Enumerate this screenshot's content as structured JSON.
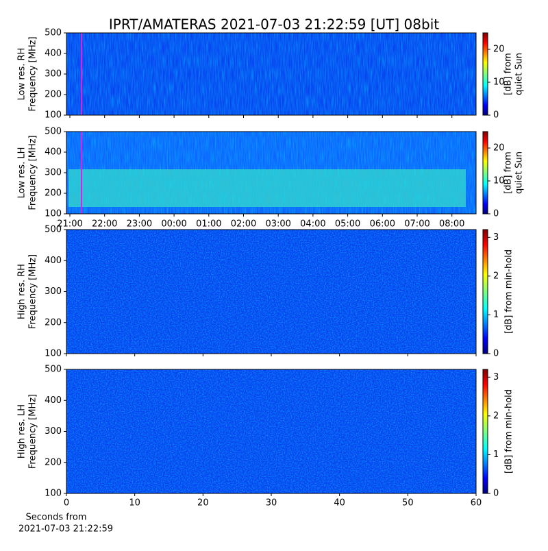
{
  "title": "IPRT/AMATERAS 2021-07-03 21:22:59 [UT]   08bit",
  "chart_data": [
    {
      "type": "spectrogram",
      "ylabel": [
        "Low res. RH",
        "Frequency [MHz]"
      ],
      "ylim": [
        100,
        500
      ],
      "yticks": [
        100,
        200,
        300,
        400,
        500
      ],
      "colorbar_label": [
        "[dB] from",
        "quiet Sun"
      ],
      "clim": [
        0,
        25
      ],
      "cticks": [
        0,
        10,
        20
      ]
    },
    {
      "type": "spectrogram",
      "ylabel": [
        "Low res. LH",
        "Frequency [MHz]"
      ],
      "ylim": [
        100,
        500
      ],
      "yticks": [
        100,
        200,
        300,
        400,
        500
      ],
      "colorbar_label": [
        "[dB] from",
        "quiet Sun"
      ],
      "clim": [
        0,
        25
      ],
      "cticks": [
        0,
        10,
        20
      ],
      "xtick_labels": [
        "21:00",
        "22:00",
        "23:00",
        "00:00",
        "01:00",
        "02:00",
        "03:00",
        "04:00",
        "05:00",
        "06:00",
        "07:00",
        "08:00"
      ]
    },
    {
      "type": "spectrogram",
      "ylabel": [
        "High res. RH",
        "Frequency [MHz]"
      ],
      "ylim": [
        100,
        500
      ],
      "yticks": [
        100,
        200,
        300,
        400,
        500
      ],
      "colorbar_label": [
        "[dB] from min-hold"
      ],
      "clim": [
        0,
        3.2
      ],
      "cticks": [
        0,
        1,
        2,
        3
      ]
    },
    {
      "type": "spectrogram",
      "ylabel": [
        "High res. LH",
        "Frequency [MHz]"
      ],
      "ylim": [
        100,
        500
      ],
      "yticks": [
        100,
        200,
        300,
        400,
        500
      ],
      "colorbar_label": [
        "[dB] from min-hold"
      ],
      "clim": [
        0,
        3.2
      ],
      "cticks": [
        0,
        1,
        2,
        3
      ],
      "xlim": [
        0,
        60
      ],
      "xticks": [
        0,
        10,
        20,
        30,
        40,
        50,
        60
      ],
      "xlabel": [
        "Seconds from",
        "2021-07-03 21:22:59"
      ]
    }
  ]
}
